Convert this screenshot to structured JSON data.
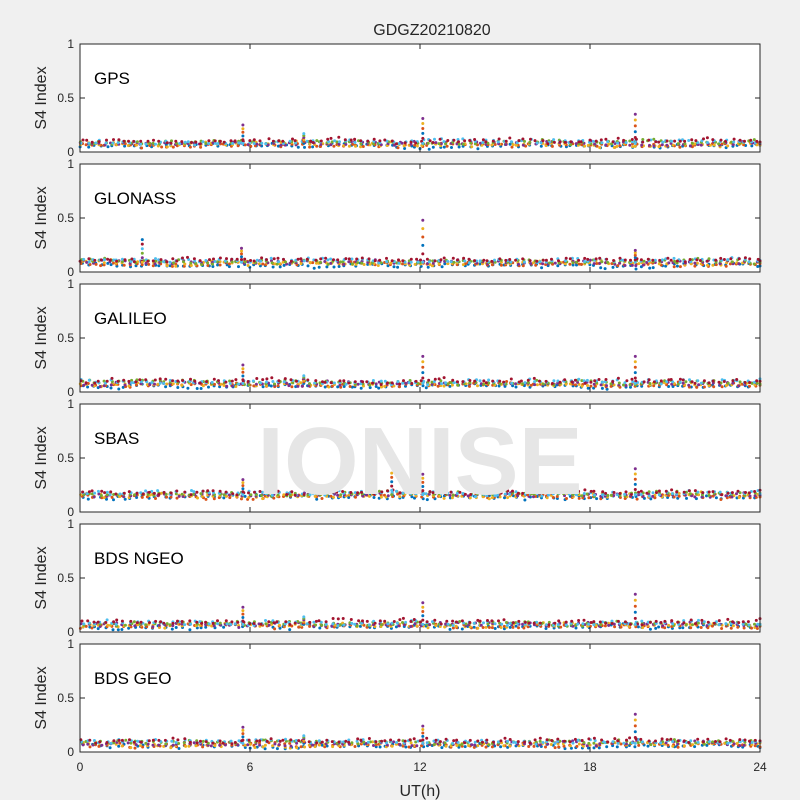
{
  "title": "GDGZ20210820",
  "watermark": "IONISE",
  "colors": {
    "background": "#f0f0f0",
    "panel": "#ffffff",
    "axis": "#262626",
    "watermark": "#e6e6e6"
  },
  "chart_data": {
    "type": "scatter",
    "title": "GDGZ20210820",
    "xlabel": "UT(h)",
    "xlim": [
      0,
      24
    ],
    "xticks": [
      0,
      6,
      12,
      18,
      24
    ],
    "xtick_labels": [
      "0",
      "6",
      "12",
      "18",
      "24"
    ],
    "series_colors": [
      "#0072BD",
      "#D95319",
      "#EDB120",
      "#7E2F8E",
      "#77AC30",
      "#4DBEEE",
      "#A2142F"
    ],
    "panels": [
      {
        "constellation": "GPS",
        "ylabel": "S4 Index",
        "ylim": [
          0,
          1
        ],
        "yticks": [
          0,
          0.5,
          1
        ],
        "ytick_labels": [
          "0",
          "0.5",
          "1"
        ],
        "baseline": 0.08,
        "spikes": [
          {
            "x": 5.75,
            "max": 0.25
          },
          {
            "x": 7.9,
            "max": 0.17
          },
          {
            "x": 12.1,
            "max": 0.31
          },
          {
            "x": 19.6,
            "max": 0.35
          }
        ]
      },
      {
        "constellation": "GLONASS",
        "ylabel": "S4 Index",
        "ylim": [
          0,
          1
        ],
        "yticks": [
          0,
          0.5,
          1
        ],
        "ytick_labels": [
          "0",
          "0.5",
          "1"
        ],
        "baseline": 0.09,
        "spikes": [
          {
            "x": 2.2,
            "max": 0.3
          },
          {
            "x": 5.7,
            "max": 0.22
          },
          {
            "x": 12.1,
            "max": 0.48
          },
          {
            "x": 19.6,
            "max": 0.2
          }
        ]
      },
      {
        "constellation": "GALILEO",
        "ylabel": "S4 Index",
        "ylim": [
          0,
          1
        ],
        "yticks": [
          0,
          0.5,
          1
        ],
        "ytick_labels": [
          "0",
          "0.5",
          "1"
        ],
        "baseline": 0.08,
        "spikes": [
          {
            "x": 5.75,
            "max": 0.25
          },
          {
            "x": 7.9,
            "max": 0.15
          },
          {
            "x": 12.1,
            "max": 0.33
          },
          {
            "x": 19.6,
            "max": 0.33
          }
        ]
      },
      {
        "constellation": "SBAS",
        "ylabel": "S4 Index",
        "ylim": [
          0,
          1
        ],
        "yticks": [
          0,
          0.5,
          1
        ],
        "ytick_labels": [
          "0",
          "0.5",
          "1"
        ],
        "baseline": 0.16,
        "spikes": [
          {
            "x": 5.75,
            "max": 0.3
          },
          {
            "x": 11.0,
            "max": 0.36
          },
          {
            "x": 12.1,
            "max": 0.35
          },
          {
            "x": 15.8,
            "max": 0.32
          },
          {
            "x": 19.6,
            "max": 0.4
          }
        ]
      },
      {
        "constellation": "BDS NGEO",
        "ylabel": "S4 Index",
        "ylim": [
          0,
          1
        ],
        "yticks": [
          0,
          0.5,
          1
        ],
        "ytick_labels": [
          "0",
          "0.5",
          "1"
        ],
        "baseline": 0.07,
        "spikes": [
          {
            "x": 5.75,
            "max": 0.23
          },
          {
            "x": 7.9,
            "max": 0.14
          },
          {
            "x": 12.1,
            "max": 0.27
          },
          {
            "x": 19.6,
            "max": 0.35
          }
        ]
      },
      {
        "constellation": "BDS GEO",
        "ylabel": "S4 Index",
        "ylim": [
          0,
          1
        ],
        "yticks": [
          0,
          0.5,
          1
        ],
        "ytick_labels": [
          "0",
          "0.5",
          "1"
        ],
        "baseline": 0.08,
        "spikes": [
          {
            "x": 5.75,
            "max": 0.23
          },
          {
            "x": 7.9,
            "max": 0.15
          },
          {
            "x": 12.1,
            "max": 0.24
          },
          {
            "x": 19.6,
            "max": 0.35
          }
        ]
      }
    ]
  }
}
